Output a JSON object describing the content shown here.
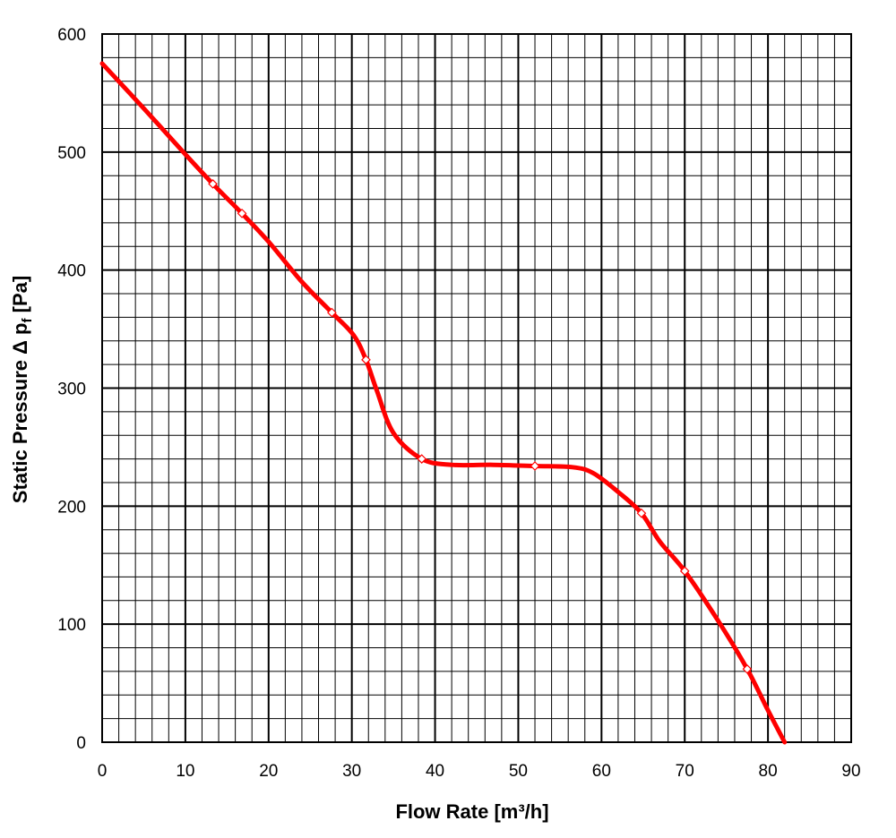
{
  "chart_data": {
    "type": "line",
    "title": "",
    "xlabel": "Flow Rate  [m³/h]",
    "ylabel": {
      "prefix": "Static Pressure   Δ p",
      "subscript": "f",
      "suffix": " [Pa]"
    },
    "xlim": [
      0,
      90
    ],
    "ylim": [
      0,
      600
    ],
    "x_major_ticks": [
      0,
      10,
      20,
      30,
      40,
      50,
      60,
      70,
      80,
      90
    ],
    "y_major_ticks": [
      0,
      100,
      200,
      300,
      400,
      500,
      600
    ],
    "x_minor_step": 2,
    "y_minor_step": 20,
    "grid": true,
    "colors": {
      "curve": "#ff0000",
      "grid": "#000000",
      "marker_fill": "#ffffff"
    },
    "series": [
      {
        "x": [
          0,
          5,
          10,
          13.3,
          16.8,
          20,
          24,
          27.6,
          30.2,
          31.7,
          33,
          35,
          38.4,
          42,
          47,
          52,
          56.5,
          59,
          62,
          64.8,
          67,
          70,
          74,
          77.5,
          80,
          82
        ],
        "y": [
          575,
          537,
          498,
          473,
          448,
          424,
          390,
          364,
          345,
          324,
          298,
          262,
          240,
          235,
          235,
          234,
          233,
          228,
          212,
          194,
          170,
          145,
          103,
          62,
          27,
          0
        ]
      }
    ],
    "markers": {
      "x": [
        13.3,
        16.8,
        27.6,
        31.7,
        38.4,
        52,
        64.8,
        70,
        77.5
      ],
      "y": [
        473,
        448,
        364,
        324,
        240,
        234,
        194,
        145,
        62
      ]
    }
  }
}
